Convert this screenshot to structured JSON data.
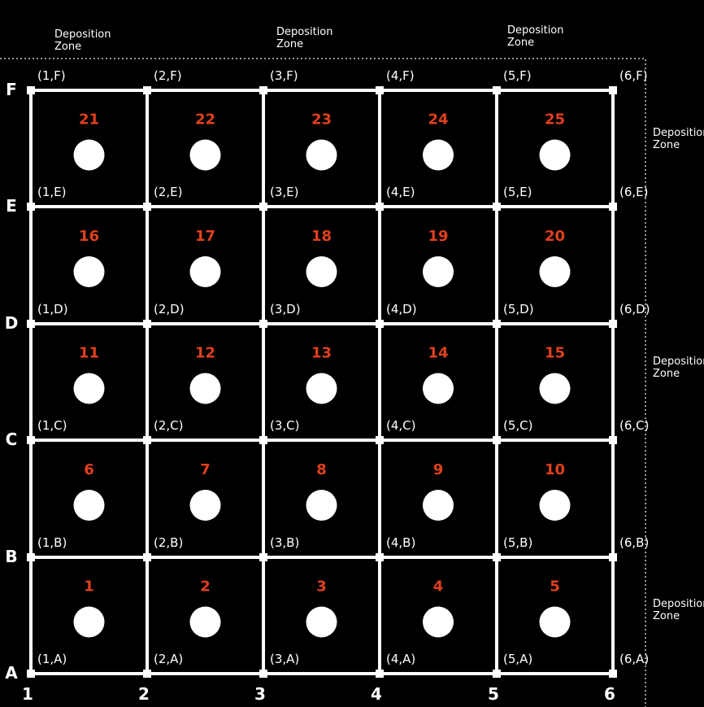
{
  "colors": {
    "background": "#000000",
    "grid": "#ffffff",
    "cell_number": "#e0401e",
    "zone_border": "#cccccc"
  },
  "columns": [
    "1",
    "2",
    "3",
    "4",
    "5",
    "6"
  ],
  "rows": [
    "A",
    "B",
    "C",
    "D",
    "E",
    "F"
  ],
  "cells": [
    {
      "number": "1",
      "col": 1,
      "row": "A"
    },
    {
      "number": "2",
      "col": 2,
      "row": "A"
    },
    {
      "number": "3",
      "col": 3,
      "row": "A"
    },
    {
      "number": "4",
      "col": 4,
      "row": "A"
    },
    {
      "number": "5",
      "col": 5,
      "row": "A"
    },
    {
      "number": "6",
      "col": 1,
      "row": "B"
    },
    {
      "number": "7",
      "col": 2,
      "row": "B"
    },
    {
      "number": "8",
      "col": 3,
      "row": "B"
    },
    {
      "number": "9",
      "col": 4,
      "row": "B"
    },
    {
      "number": "10",
      "col": 5,
      "row": "B"
    },
    {
      "number": "11",
      "col": 1,
      "row": "C"
    },
    {
      "number": "12",
      "col": 2,
      "row": "C"
    },
    {
      "number": "13",
      "col": 3,
      "row": "C"
    },
    {
      "number": "14",
      "col": 4,
      "row": "C"
    },
    {
      "number": "15",
      "col": 5,
      "row": "C"
    },
    {
      "number": "16",
      "col": 1,
      "row": "D"
    },
    {
      "number": "17",
      "col": 2,
      "row": "D"
    },
    {
      "number": "18",
      "col": 3,
      "row": "D"
    },
    {
      "number": "19",
      "col": 4,
      "row": "D"
    },
    {
      "number": "20",
      "col": 5,
      "row": "D"
    },
    {
      "number": "21",
      "col": 1,
      "row": "E"
    },
    {
      "number": "22",
      "col": 2,
      "row": "E"
    },
    {
      "number": "23",
      "col": 3,
      "row": "E"
    },
    {
      "number": "24",
      "col": 4,
      "row": "E"
    },
    {
      "number": "25",
      "col": 5,
      "row": "E"
    }
  ],
  "node_labels": [
    "(1,A)",
    "(2,A)",
    "(3,A)",
    "(4,A)",
    "(5,A)",
    "(6,A)",
    "(1,B)",
    "(2,B)",
    "(3,B)",
    "(4,B)",
    "(5,B)",
    "(6,B)",
    "(1,C)",
    "(2,C)",
    "(3,C)",
    "(4,C)",
    "(5,C)",
    "(6,C)",
    "(1,D)",
    "(2,D)",
    "(3,D)",
    "(4,D)",
    "(5,D)",
    "(6,D)",
    "(1,E)",
    "(2,E)",
    "(3,E)",
    "(4,E)",
    "(5,E)",
    "(6,E)",
    "(1,F)",
    "(2,F)",
    "(3,F)",
    "(4,F)",
    "(5,F)",
    "(6,F)"
  ],
  "deposition_zones": [
    {
      "line1": "Deposition",
      "line2": "Zone"
    },
    {
      "line1": "Deposition",
      "line2": "Zone"
    },
    {
      "line1": "Deposition",
      "line2": "Zone"
    },
    {
      "line1": "Deposition",
      "line2": "Zone"
    },
    {
      "line1": "Deposition",
      "line2": "Zone"
    },
    {
      "line1": "Deposition",
      "line2": "Zone"
    }
  ]
}
